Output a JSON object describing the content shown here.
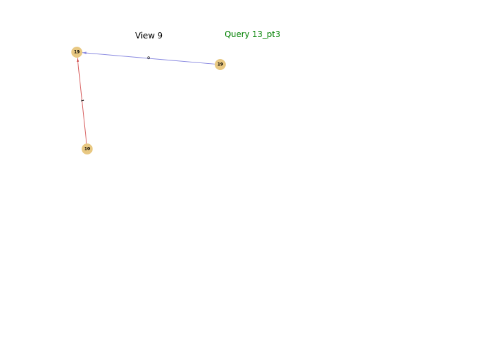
{
  "view_title": "View 9",
  "query_title": "Query 13_pt3",
  "colors": {
    "view_title": "#000000",
    "query_title": "#008000",
    "node_fill": "#e8c882",
    "node_label": "#000000",
    "edge_0": "#8888e0",
    "edge_1": "#d65a5a"
  },
  "nodes": [
    {
      "id": "a",
      "label": "19"
    },
    {
      "id": "b",
      "label": "19"
    },
    {
      "id": "c",
      "label": "10"
    }
  ],
  "edges": [
    {
      "from": "b",
      "to": "a",
      "label": "0",
      "color_key": "edge_0"
    },
    {
      "from": "c",
      "to": "a",
      "label": "1",
      "color_key": "edge_1"
    }
  ]
}
